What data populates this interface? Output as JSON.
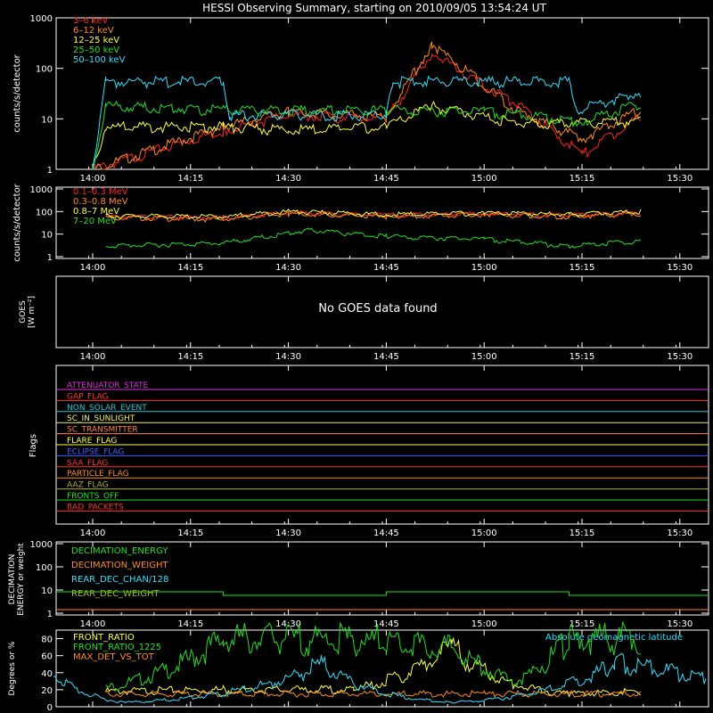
{
  "title": "HESSI Observing Summary, starting on 2010/09/05 13:54:24 UT",
  "time_ticks": [
    "14:00",
    "14:15",
    "14:30",
    "14:45",
    "15:00",
    "15:15",
    "15:30"
  ],
  "panels": {
    "p1": {
      "ylabel": "counts/s/detector",
      "yticks": [
        "1",
        "10",
        "100",
        "1000"
      ],
      "legend": [
        {
          "name": "3–6 keV",
          "color": "#ff2020"
        },
        {
          "name": "6–12 keV",
          "color": "#ff8c1a"
        },
        {
          "name": "12–25 keV",
          "color": "#ffff40"
        },
        {
          "name": "25–50 keV",
          "color": "#20e020"
        },
        {
          "name": "50–100 keV",
          "color": "#30e0ff"
        }
      ]
    },
    "p2": {
      "ylabel": "counts/s/detector",
      "yticks": [
        "1",
        "10",
        "100",
        "1000"
      ],
      "legend": [
        {
          "name": "0.1–0.3 MeV",
          "color": "#ff2020"
        },
        {
          "name": "0.3–0.8 MeV",
          "color": "#ff8c1a"
        },
        {
          "name": "0.8–7 MeV",
          "color": "#ffff40"
        },
        {
          "name": "7–20 MeV",
          "color": "#20e020"
        }
      ]
    },
    "p3": {
      "ylabel_line1": "GOES",
      "ylabel_line2": "[W m⁻²]",
      "message": "No GOES data found"
    },
    "p4": {
      "ylabel": "Flags",
      "flags": [
        {
          "name": "ATTENUATOR_STATE",
          "color": "#e030e0"
        },
        {
          "name": "GAP_FLAG",
          "color": "#ff3a1a"
        },
        {
          "name": "NON_SOLAR_EVENT",
          "color": "#20c8d8"
        },
        {
          "name": "SC_IN_SUNLIGHT",
          "color": "#f0f060"
        },
        {
          "name": "SC_TRANSMITTER",
          "color": "#ff8040"
        },
        {
          "name": "FLARE_FLAG",
          "color": "#ffff40"
        },
        {
          "name": "ECLIPSE_FLAG",
          "color": "#4060ff"
        },
        {
          "name": "SAA_FLAG",
          "color": "#ff3030"
        },
        {
          "name": "PARTICLE_FLAG",
          "color": "#ff8c1a"
        },
        {
          "name": "AAZ_FLAG",
          "color": "#b0b020"
        },
        {
          "name": "FRONTS_OFF",
          "color": "#20e020"
        },
        {
          "name": "BAD_PACKETS",
          "color": "#ff3030"
        }
      ]
    },
    "p5": {
      "ylabel_line1": "DECIMATION",
      "ylabel_line2": "ENERGY or weight",
      "yticks": [
        "1",
        "10",
        "100",
        "1000"
      ],
      "legend": [
        {
          "name": "DECIMATION_ENERGY",
          "color": "#20e020"
        },
        {
          "name": "DECIMATION_WEIGHT",
          "color": "#ff8c1a"
        },
        {
          "name": "REAR_DEC_CHAN/128",
          "color": "#30e0ff"
        },
        {
          "name": "REAR_DEC_WEIGHT",
          "color": "#b0b020"
        }
      ]
    },
    "p6": {
      "ylabel": "Degrees or %",
      "yticks": [
        "0",
        "20",
        "40",
        "60",
        "80"
      ],
      "legend": [
        {
          "name": "FRONT_RATIO",
          "color": "#ffff40"
        },
        {
          "name": "FRONT_RATIO_1225",
          "color": "#20e020"
        },
        {
          "name": "MAX_DET_VS_TOT",
          "color": "#ff8c1a"
        }
      ],
      "right_legend": {
        "name": "Absolute geomagnetic latitude",
        "color": "#30e0ff"
      }
    }
  },
  "chart_data": {
    "type": "line",
    "x_unit": "UT time",
    "x_range": [
      "13:54:24",
      "15:34:24"
    ],
    "series_counts_low": [
      {
        "name": "3–6 keV",
        "points": [
          [
            "14:00",
            1
          ],
          [
            "14:20",
            6
          ],
          [
            "14:30",
            12
          ],
          [
            "14:45",
            10
          ],
          [
            "14:52",
            200
          ],
          [
            "15:05",
            20
          ],
          [
            "15:15",
            2
          ],
          [
            "15:24",
            11
          ]
        ]
      },
      {
        "name": "6–12 keV",
        "points": [
          [
            "14:00",
            1
          ],
          [
            "14:20",
            7
          ],
          [
            "14:30",
            14
          ],
          [
            "14:45",
            11
          ],
          [
            "14:52",
            300
          ],
          [
            "15:05",
            15
          ],
          [
            "15:15",
            4
          ],
          [
            "15:24",
            15
          ]
        ]
      },
      {
        "name": "12–25 keV",
        "points": [
          [
            "14:00",
            1
          ],
          [
            "14:02",
            7
          ],
          [
            "14:20",
            7
          ],
          [
            "14:30",
            6
          ],
          [
            "14:45",
            7
          ],
          [
            "14:52",
            18
          ],
          [
            "15:05",
            8
          ],
          [
            "15:24",
            9
          ]
        ]
      },
      {
        "name": "25–50 keV",
        "points": [
          [
            "14:00",
            1
          ],
          [
            "14:02",
            18
          ],
          [
            "14:20",
            15
          ],
          [
            "14:45",
            15
          ],
          [
            "15:00",
            14
          ],
          [
            "15:15",
            9
          ],
          [
            "15:24",
            20
          ]
        ]
      },
      {
        "name": "50–100 keV",
        "points": [
          [
            "14:00",
            1
          ],
          [
            "14:02",
            55
          ],
          [
            "14:20",
            55
          ],
          [
            "14:21",
            12
          ],
          [
            "14:45",
            12
          ],
          [
            "14:46",
            55
          ],
          [
            "15:13",
            55
          ],
          [
            "15:14",
            15
          ],
          [
            "15:24",
            35
          ]
        ]
      }
    ],
    "series_counts_high": [
      {
        "name": "0.1–0.3 MeV",
        "points": [
          [
            "14:02",
            60
          ],
          [
            "14:20",
            55
          ],
          [
            "14:30",
            90
          ],
          [
            "14:45",
            70
          ],
          [
            "15:00",
            80
          ],
          [
            "15:13",
            70
          ],
          [
            "15:24",
            90
          ]
        ]
      },
      {
        "name": "0.3–0.8 MeV",
        "points": [
          [
            "14:02",
            55
          ],
          [
            "14:20",
            45
          ],
          [
            "14:30",
            80
          ],
          [
            "14:45",
            60
          ],
          [
            "15:00",
            75
          ],
          [
            "15:13",
            60
          ],
          [
            "15:24",
            80
          ]
        ]
      },
      {
        "name": "0.8–7 MeV",
        "points": [
          [
            "14:02",
            65
          ],
          [
            "14:20",
            60
          ],
          [
            "14:30",
            100
          ],
          [
            "14:45",
            75
          ],
          [
            "15:00",
            85
          ],
          [
            "15:13",
            75
          ],
          [
            "15:24",
            100
          ]
        ]
      },
      {
        "name": "7–20 MeV",
        "points": [
          [
            "14:02",
            3
          ],
          [
            "14:20",
            4
          ],
          [
            "14:33",
            15
          ],
          [
            "14:45",
            8
          ],
          [
            "15:00",
            6
          ],
          [
            "15:13",
            3
          ],
          [
            "15:24",
            5
          ]
        ]
      }
    ],
    "series_ratios": [
      {
        "name": "FRONT_RATIO",
        "points": [
          [
            "14:02",
            18
          ],
          [
            "14:20",
            20
          ],
          [
            "14:40",
            20
          ],
          [
            "14:55",
            70
          ],
          [
            "15:05",
            25
          ],
          [
            "15:13",
            15
          ],
          [
            "15:24",
            18
          ]
        ]
      },
      {
        "name": "FRONT_RATIO_1225",
        "points": [
          [
            "14:02",
            22
          ],
          [
            "14:20",
            80
          ],
          [
            "14:45",
            78
          ],
          [
            "14:55",
            68
          ],
          [
            "15:05",
            30
          ],
          [
            "15:13",
            80
          ],
          [
            "15:24",
            80
          ]
        ]
      },
      {
        "name": "MAX_DET_VS_TOT",
        "points": [
          [
            "14:02",
            15
          ],
          [
            "14:45",
            15
          ],
          [
            "15:00",
            15
          ],
          [
            "15:24",
            15
          ]
        ]
      },
      {
        "name": "Absolute geomagnetic latitude",
        "points": [
          [
            "13:54",
            40
          ],
          [
            "14:05",
            5
          ],
          [
            "14:35",
            50
          ],
          [
            "14:55",
            5
          ],
          [
            "15:20",
            52
          ],
          [
            "15:34",
            35
          ]
        ]
      }
    ]
  }
}
